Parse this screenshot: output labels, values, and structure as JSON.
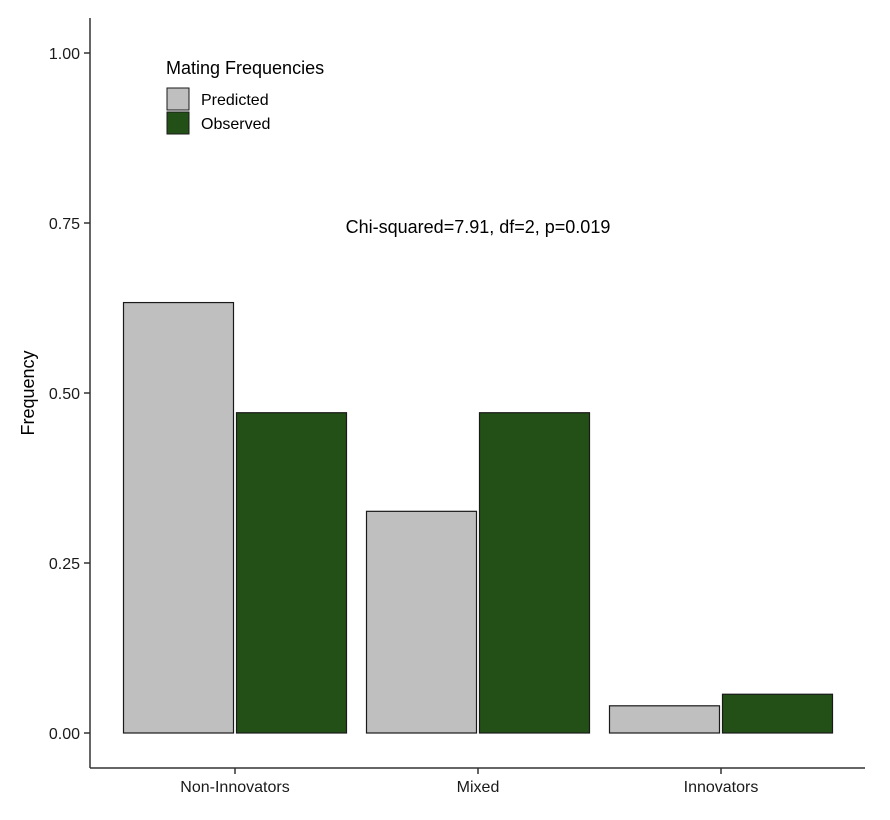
{
  "chart_data": {
    "type": "bar",
    "categories": [
      "Non-Innovators",
      "Mixed",
      "Innovators"
    ],
    "series": [
      {
        "name": "Predicted",
        "values": [
          0.633,
          0.326,
          0.04
        ],
        "color": "#bfbfbf"
      },
      {
        "name": "Observed",
        "values": [
          0.471,
          0.471,
          0.057
        ],
        "color": "#225016"
      }
    ],
    "xlabel": "",
    "ylabel": "Frequency",
    "ylim": [
      0,
      1.0
    ],
    "yticks": [
      0,
      0.25,
      0.5,
      0.75,
      1.0
    ],
    "ytick_labels": [
      "0.00",
      "0.25",
      "0.50",
      "0.75",
      "1.00"
    ],
    "legend": {
      "title": "Mating Frequencies",
      "position": "top-left"
    },
    "annotation": "Chi-squared=7.91, df=2, p=0.019",
    "grid": false
  }
}
